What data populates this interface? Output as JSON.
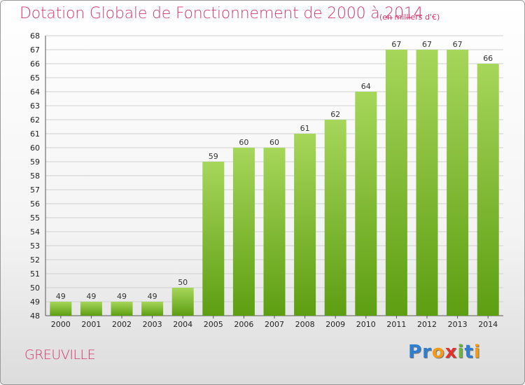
{
  "chart_data": {
    "type": "bar",
    "title": "Dotation Globale de Fonctionnement de 2000 à 2014",
    "subtitle": "(en milliers d'€)",
    "xlabel": "",
    "ylabel": "",
    "categories": [
      "2000",
      "2001",
      "2002",
      "2003",
      "2004",
      "2005",
      "2006",
      "2007",
      "2008",
      "2009",
      "2010",
      "2011",
      "2012",
      "2013",
      "2014"
    ],
    "values": [
      49,
      49,
      49,
      49,
      50,
      59,
      60,
      60,
      61,
      62,
      64,
      67,
      67,
      67,
      66
    ],
    "data_labels": [
      "49",
      "49",
      "49",
      "49",
      "50",
      "59",
      "60",
      "60",
      "61",
      "62",
      "64",
      "67",
      "67",
      "67",
      "66"
    ],
    "ylim": [
      48,
      68
    ],
    "ytick_step": 1,
    "grid": true,
    "bar_color_top": "#a6d65a",
    "bar_color_bottom": "#5d9e12"
  },
  "footer": {
    "town": "GREUVILLE",
    "logo_letters": [
      {
        "char": "P",
        "color": "#2e7fd0"
      },
      {
        "char": "r",
        "color": "#2e7fd0"
      },
      {
        "char": "o",
        "color": "#f29a19"
      },
      {
        "char": "x",
        "color": "#e0322e"
      },
      {
        "char": "i",
        "color": "#6db33f"
      },
      {
        "char": "t",
        "color": "#2e7fd0"
      },
      {
        "char": "i",
        "color": "#f29a19"
      }
    ]
  },
  "colors": {
    "accent": "#d4366e",
    "grid": "#d0d0d0"
  }
}
